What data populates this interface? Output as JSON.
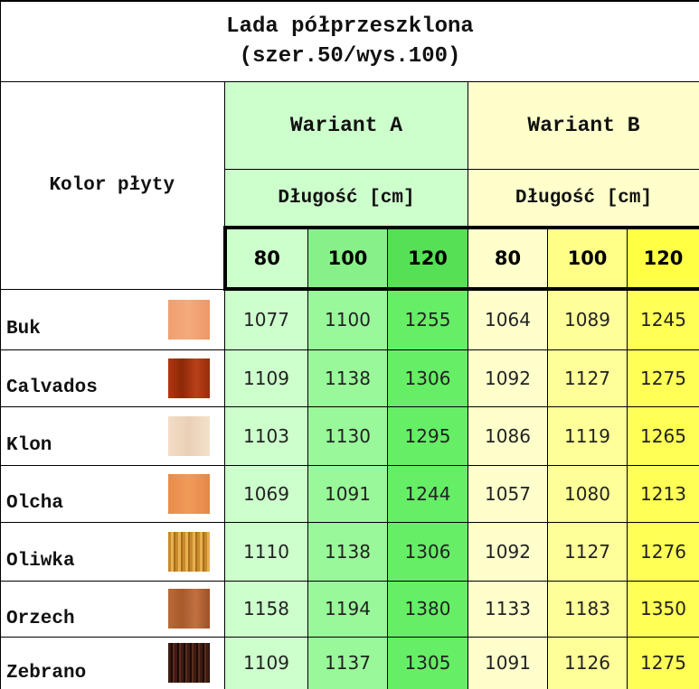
{
  "title": [
    "Lada półprzeszklona",
    "(szer.50/wys.100)"
  ],
  "row_header": "Kolor płyty",
  "variants": [
    {
      "name": "Wariant A",
      "subheader": "Długość [cm]",
      "lengths": [
        "80",
        "100",
        "120"
      ]
    },
    {
      "name": "Wariant B",
      "subheader": "Długość [cm]",
      "lengths": [
        "80",
        "100",
        "120"
      ]
    }
  ],
  "rows": [
    {
      "name": "Buk",
      "prices": [
        "1077",
        "1100",
        "1255",
        "1064",
        "1089",
        "1245"
      ]
    },
    {
      "name": "Calvados",
      "prices": [
        "1109",
        "1138",
        "1306",
        "1092",
        "1127",
        "1275"
      ]
    },
    {
      "name": "Klon",
      "prices": [
        "1103",
        "1130",
        "1295",
        "1086",
        "1119",
        "1265"
      ]
    },
    {
      "name": "Olcha",
      "prices": [
        "1069",
        "1091",
        "1244",
        "1057",
        "1080",
        "1213"
      ]
    },
    {
      "name": "Oliwka",
      "prices": [
        "1110",
        "1138",
        "1306",
        "1092",
        "1127",
        "1276"
      ]
    },
    {
      "name": "Orzech",
      "prices": [
        "1158",
        "1194",
        "1380",
        "1133",
        "1183",
        "1350"
      ]
    },
    {
      "name": "Zebrano",
      "prices": [
        "1109",
        "1137",
        "1305",
        "1091",
        "1126",
        "1275"
      ]
    }
  ]
}
